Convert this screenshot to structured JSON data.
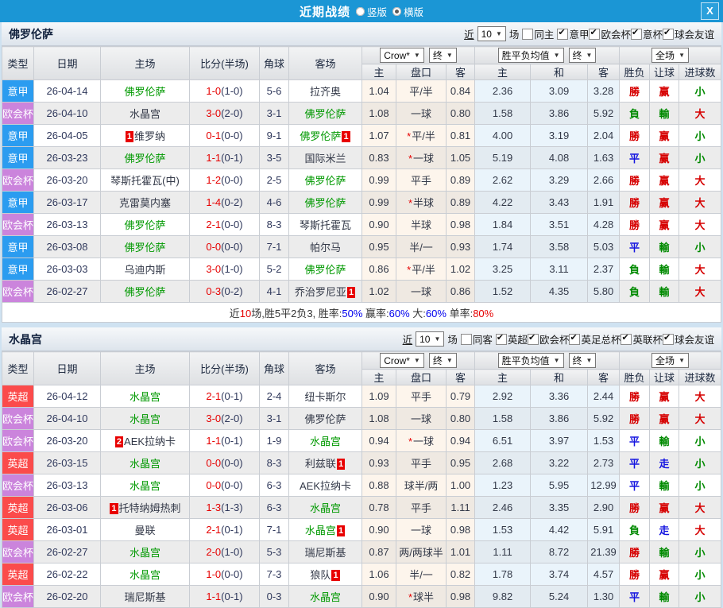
{
  "titlebar": {
    "title": "近期战绩",
    "views": [
      {
        "label": "竖版",
        "selected": false
      },
      {
        "label": "横版",
        "selected": true
      }
    ],
    "close_label": "X"
  },
  "table_header": {
    "main_cols": [
      "类型",
      "日期",
      "主场",
      "比分(半场)",
      "角球",
      "客场"
    ],
    "sub_cols": [
      "主",
      "盘口",
      "客",
      "主",
      "和",
      "客",
      "胜负",
      "让球",
      "进球数"
    ],
    "dropdowns": {
      "asian": [
        "Crow*",
        "终"
      ],
      "euro": [
        "胜平负均值",
        "终"
      ],
      "result": [
        "全场"
      ]
    }
  },
  "colors": {
    "league": {
      "意甲": "#2b9cf0",
      "欧会杯": "#cb84dc",
      "英超": "#fb4b4b"
    },
    "red": "#d60000",
    "green": "#008a00",
    "blue": "#1414e0",
    "team_highlight": "#009900",
    "score_ft": "#e60000",
    "score_ht": "#30395c"
  },
  "sections": [
    {
      "team": "佛罗伦萨",
      "filter": {
        "near": "近",
        "games": "10",
        "games_suffix": "场",
        "same": {
          "label": "同主",
          "checked": false
        },
        "leagues": [
          {
            "label": "意甲",
            "checked": true
          },
          {
            "label": "欧会杯",
            "checked": true
          },
          {
            "label": "意杯",
            "checked": true
          },
          {
            "label": "球会友谊",
            "checked": true
          }
        ]
      },
      "rows": [
        {
          "league": "意甲",
          "date": "26-04-14",
          "home": {
            "name": "佛罗伦萨",
            "hl": true
          },
          "ft": "1-0",
          "ht": "(1-0)",
          "corner": "5-6",
          "away": {
            "name": "拉齐奥"
          },
          "a1": "1.04",
          "hcp": "平/半",
          "star": false,
          "a2": "0.84",
          "e": [
            "2.36",
            "3.09",
            "3.28"
          ],
          "res": [
            [
              "勝",
              "r"
            ],
            [
              "赢",
              "r"
            ],
            [
              "小",
              "g"
            ]
          ]
        },
        {
          "league": "欧会杯",
          "date": "26-04-10",
          "home": {
            "name": "水晶宫"
          },
          "ft": "3-0",
          "ht": "(2-0)",
          "corner": "3-1",
          "away": {
            "name": "佛罗伦萨",
            "hl": true
          },
          "a1": "1.08",
          "hcp": "一球",
          "star": false,
          "a2": "0.80",
          "e": [
            "1.58",
            "3.86",
            "5.92"
          ],
          "res": [
            [
              "負",
              "g"
            ],
            [
              "輸",
              "g"
            ],
            [
              "大",
              "r"
            ]
          ]
        },
        {
          "league": "意甲",
          "date": "26-04-05",
          "home": {
            "name": "维罗纳",
            "badge": "1",
            "badge_pos": "l"
          },
          "ft": "0-1",
          "ht": "(0-0)",
          "corner": "9-1",
          "away": {
            "name": "佛罗伦萨",
            "hl": true,
            "badge": "1",
            "badge_pos": "r"
          },
          "a1": "1.07",
          "hcp": "平/半",
          "star": true,
          "a2": "0.81",
          "e": [
            "4.00",
            "3.19",
            "2.04"
          ],
          "res": [
            [
              "勝",
              "r"
            ],
            [
              "赢",
              "r"
            ],
            [
              "小",
              "g"
            ]
          ]
        },
        {
          "league": "意甲",
          "date": "26-03-23",
          "home": {
            "name": "佛罗伦萨",
            "hl": true
          },
          "ft": "1-1",
          "ht": "(0-1)",
          "corner": "3-5",
          "away": {
            "name": "国际米兰"
          },
          "a1": "0.83",
          "hcp": "一球",
          "star": true,
          "a2": "1.05",
          "e": [
            "5.19",
            "4.08",
            "1.63"
          ],
          "res": [
            [
              "平",
              "b"
            ],
            [
              "赢",
              "r"
            ],
            [
              "小",
              "g"
            ]
          ]
        },
        {
          "league": "欧会杯",
          "date": "26-03-20",
          "home": {
            "name": "琴斯托霍瓦(中)"
          },
          "ft": "1-2",
          "ht": "(0-0)",
          "corner": "2-5",
          "away": {
            "name": "佛罗伦萨",
            "hl": true
          },
          "a1": "0.99",
          "hcp": "平手",
          "star": false,
          "a2": "0.89",
          "e": [
            "2.62",
            "3.29",
            "2.66"
          ],
          "res": [
            [
              "勝",
              "r"
            ],
            [
              "赢",
              "r"
            ],
            [
              "大",
              "r"
            ]
          ]
        },
        {
          "league": "意甲",
          "date": "26-03-17",
          "home": {
            "name": "克雷莫内塞"
          },
          "ft": "1-4",
          "ht": "(0-2)",
          "corner": "4-6",
          "away": {
            "name": "佛罗伦萨",
            "hl": true
          },
          "a1": "0.99",
          "hcp": "半球",
          "star": true,
          "a2": "0.89",
          "e": [
            "4.22",
            "3.43",
            "1.91"
          ],
          "res": [
            [
              "勝",
              "r"
            ],
            [
              "赢",
              "r"
            ],
            [
              "大",
              "r"
            ]
          ]
        },
        {
          "league": "欧会杯",
          "date": "26-03-13",
          "home": {
            "name": "佛罗伦萨",
            "hl": true
          },
          "ft": "2-1",
          "ht": "(0-0)",
          "corner": "8-3",
          "away": {
            "name": "琴斯托霍瓦"
          },
          "a1": "0.90",
          "hcp": "半球",
          "star": false,
          "a2": "0.98",
          "e": [
            "1.84",
            "3.51",
            "4.28"
          ],
          "res": [
            [
              "勝",
              "r"
            ],
            [
              "赢",
              "r"
            ],
            [
              "大",
              "r"
            ]
          ]
        },
        {
          "league": "意甲",
          "date": "26-03-08",
          "home": {
            "name": "佛罗伦萨",
            "hl": true
          },
          "ft": "0-0",
          "ht": "(0-0)",
          "corner": "7-1",
          "away": {
            "name": "帕尔马"
          },
          "a1": "0.95",
          "hcp": "半/一",
          "star": false,
          "a2": "0.93",
          "e": [
            "1.74",
            "3.58",
            "5.03"
          ],
          "res": [
            [
              "平",
              "b"
            ],
            [
              "輸",
              "g"
            ],
            [
              "小",
              "g"
            ]
          ]
        },
        {
          "league": "意甲",
          "date": "26-03-03",
          "home": {
            "name": "乌迪内斯"
          },
          "ft": "3-0",
          "ht": "(1-0)",
          "corner": "5-2",
          "away": {
            "name": "佛罗伦萨",
            "hl": true
          },
          "a1": "0.86",
          "hcp": "平/半",
          "star": true,
          "a2": "1.02",
          "e": [
            "3.25",
            "3.11",
            "2.37"
          ],
          "res": [
            [
              "負",
              "g"
            ],
            [
              "輸",
              "g"
            ],
            [
              "大",
              "r"
            ]
          ]
        },
        {
          "league": "欧会杯",
          "date": "26-02-27",
          "home": {
            "name": "佛罗伦萨",
            "hl": true
          },
          "ft": "0-3",
          "ht": "(0-2)",
          "corner": "4-1",
          "away": {
            "name": "乔治罗尼亚",
            "badge": "1",
            "badge_pos": "r"
          },
          "a1": "1.02",
          "hcp": "一球",
          "star": false,
          "a2": "0.86",
          "e": [
            "1.52",
            "4.35",
            "5.80"
          ],
          "res": [
            [
              "負",
              "g"
            ],
            [
              "輸",
              "g"
            ],
            [
              "大",
              "r"
            ]
          ]
        }
      ],
      "summary": [
        {
          "t": "近",
          "c": "dark"
        },
        {
          "t": "10",
          "c": "red"
        },
        {
          "t": "场,胜5平2负3, 胜率:",
          "c": "dark"
        },
        {
          "t": "50%",
          "c": "blue"
        },
        {
          "t": " 赢率:",
          "c": "dark"
        },
        {
          "t": "60%",
          "c": "blue"
        },
        {
          "t": " 大:",
          "c": "dark"
        },
        {
          "t": "60%",
          "c": "blue"
        },
        {
          "t": " 单率:",
          "c": "dark"
        },
        {
          "t": "80%",
          "c": "red"
        }
      ]
    },
    {
      "team": "水晶宫",
      "filter": {
        "near": "近",
        "games": "10",
        "games_suffix": "场",
        "same": {
          "label": "同客",
          "checked": false
        },
        "leagues": [
          {
            "label": "英超",
            "checked": true
          },
          {
            "label": "欧会杯",
            "checked": true
          },
          {
            "label": "英足总杯",
            "checked": true
          },
          {
            "label": "英联杯",
            "checked": true
          },
          {
            "label": "球会友谊",
            "checked": true
          }
        ]
      },
      "rows": [
        {
          "league": "英超",
          "date": "26-04-12",
          "home": {
            "name": "水晶宫",
            "hl": true
          },
          "ft": "2-1",
          "ht": "(0-1)",
          "corner": "2-4",
          "away": {
            "name": "纽卡斯尔"
          },
          "a1": "1.09",
          "hcp": "平手",
          "star": false,
          "a2": "0.79",
          "e": [
            "2.92",
            "3.36",
            "2.44"
          ],
          "res": [
            [
              "勝",
              "r"
            ],
            [
              "赢",
              "r"
            ],
            [
              "大",
              "r"
            ]
          ]
        },
        {
          "league": "欧会杯",
          "date": "26-04-10",
          "home": {
            "name": "水晶宫",
            "hl": true
          },
          "ft": "3-0",
          "ht": "(2-0)",
          "corner": "3-1",
          "away": {
            "name": "佛罗伦萨"
          },
          "a1": "1.08",
          "hcp": "一球",
          "star": false,
          "a2": "0.80",
          "e": [
            "1.58",
            "3.86",
            "5.92"
          ],
          "res": [
            [
              "勝",
              "r"
            ],
            [
              "赢",
              "r"
            ],
            [
              "大",
              "r"
            ]
          ]
        },
        {
          "league": "欧会杯",
          "date": "26-03-20",
          "home": {
            "name": "AEK拉纳卡",
            "badge": "2",
            "badge_pos": "l"
          },
          "ft": "1-1",
          "ht": "(0-1)",
          "corner": "1-9",
          "away": {
            "name": "水晶宫",
            "hl": true
          },
          "a1": "0.94",
          "hcp": "一球",
          "star": true,
          "a2": "0.94",
          "e": [
            "6.51",
            "3.97",
            "1.53"
          ],
          "res": [
            [
              "平",
              "b"
            ],
            [
              "輸",
              "g"
            ],
            [
              "小",
              "g"
            ]
          ]
        },
        {
          "league": "英超",
          "date": "26-03-15",
          "home": {
            "name": "水晶宫",
            "hl": true
          },
          "ft": "0-0",
          "ht": "(0-0)",
          "corner": "8-3",
          "away": {
            "name": "利兹联",
            "badge": "1",
            "badge_pos": "r"
          },
          "a1": "0.93",
          "hcp": "平手",
          "star": false,
          "a2": "0.95",
          "e": [
            "2.68",
            "3.22",
            "2.73"
          ],
          "res": [
            [
              "平",
              "b"
            ],
            [
              "走",
              "b"
            ],
            [
              "小",
              "g"
            ]
          ]
        },
        {
          "league": "欧会杯",
          "date": "26-03-13",
          "home": {
            "name": "水晶宫",
            "hl": true
          },
          "ft": "0-0",
          "ht": "(0-0)",
          "corner": "6-3",
          "away": {
            "name": "AEK拉纳卡"
          },
          "a1": "0.88",
          "hcp": "球半/两",
          "star": false,
          "a2": "1.00",
          "e": [
            "1.23",
            "5.95",
            "12.99"
          ],
          "res": [
            [
              "平",
              "b"
            ],
            [
              "輸",
              "g"
            ],
            [
              "小",
              "g"
            ]
          ]
        },
        {
          "league": "英超",
          "date": "26-03-06",
          "home": {
            "name": "托特纳姆热刺",
            "badge": "1",
            "badge_pos": "l"
          },
          "ft": "1-3",
          "ht": "(1-3)",
          "corner": "6-3",
          "away": {
            "name": "水晶宫",
            "hl": true
          },
          "a1": "0.78",
          "hcp": "平手",
          "star": false,
          "a2": "1.11",
          "e": [
            "2.46",
            "3.35",
            "2.90"
          ],
          "res": [
            [
              "勝",
              "r"
            ],
            [
              "赢",
              "r"
            ],
            [
              "大",
              "r"
            ]
          ]
        },
        {
          "league": "英超",
          "date": "26-03-01",
          "home": {
            "name": "曼联"
          },
          "ft": "2-1",
          "ht": "(0-1)",
          "corner": "7-1",
          "away": {
            "name": "水晶宫",
            "hl": true,
            "badge": "1",
            "badge_pos": "r"
          },
          "a1": "0.90",
          "hcp": "一球",
          "star": false,
          "a2": "0.98",
          "e": [
            "1.53",
            "4.42",
            "5.91"
          ],
          "res": [
            [
              "負",
              "g"
            ],
            [
              "走",
              "b"
            ],
            [
              "大",
              "r"
            ]
          ]
        },
        {
          "league": "欧会杯",
          "date": "26-02-27",
          "home": {
            "name": "水晶宫",
            "hl": true
          },
          "ft": "2-0",
          "ht": "(1-0)",
          "corner": "5-3",
          "away": {
            "name": "瑞尼斯基"
          },
          "a1": "0.87",
          "hcp": "两/两球半",
          "star": false,
          "a2": "1.01",
          "e": [
            "1.11",
            "8.72",
            "21.39"
          ],
          "res": [
            [
              "勝",
              "r"
            ],
            [
              "輸",
              "g"
            ],
            [
              "小",
              "g"
            ]
          ]
        },
        {
          "league": "英超",
          "date": "26-02-22",
          "home": {
            "name": "水晶宫",
            "hl": true
          },
          "ft": "1-0",
          "ht": "(0-0)",
          "corner": "7-3",
          "away": {
            "name": "狼队",
            "badge": "1",
            "badge_pos": "r"
          },
          "a1": "1.06",
          "hcp": "半/一",
          "star": false,
          "a2": "0.82",
          "e": [
            "1.78",
            "3.74",
            "4.57"
          ],
          "res": [
            [
              "勝",
              "r"
            ],
            [
              "赢",
              "r"
            ],
            [
              "小",
              "g"
            ]
          ]
        },
        {
          "league": "欧会杯",
          "date": "26-02-20",
          "home": {
            "name": "瑞尼斯基"
          },
          "ft": "1-1",
          "ht": "(0-1)",
          "corner": "0-3",
          "away": {
            "name": "水晶宫",
            "hl": true
          },
          "a1": "0.90",
          "hcp": "球半",
          "star": true,
          "a2": "0.98",
          "e": [
            "9.82",
            "5.24",
            "1.30"
          ],
          "res": [
            [
              "平",
              "b"
            ],
            [
              "輸",
              "g"
            ],
            [
              "小",
              "g"
            ]
          ]
        }
      ],
      "summary": null
    }
  ]
}
